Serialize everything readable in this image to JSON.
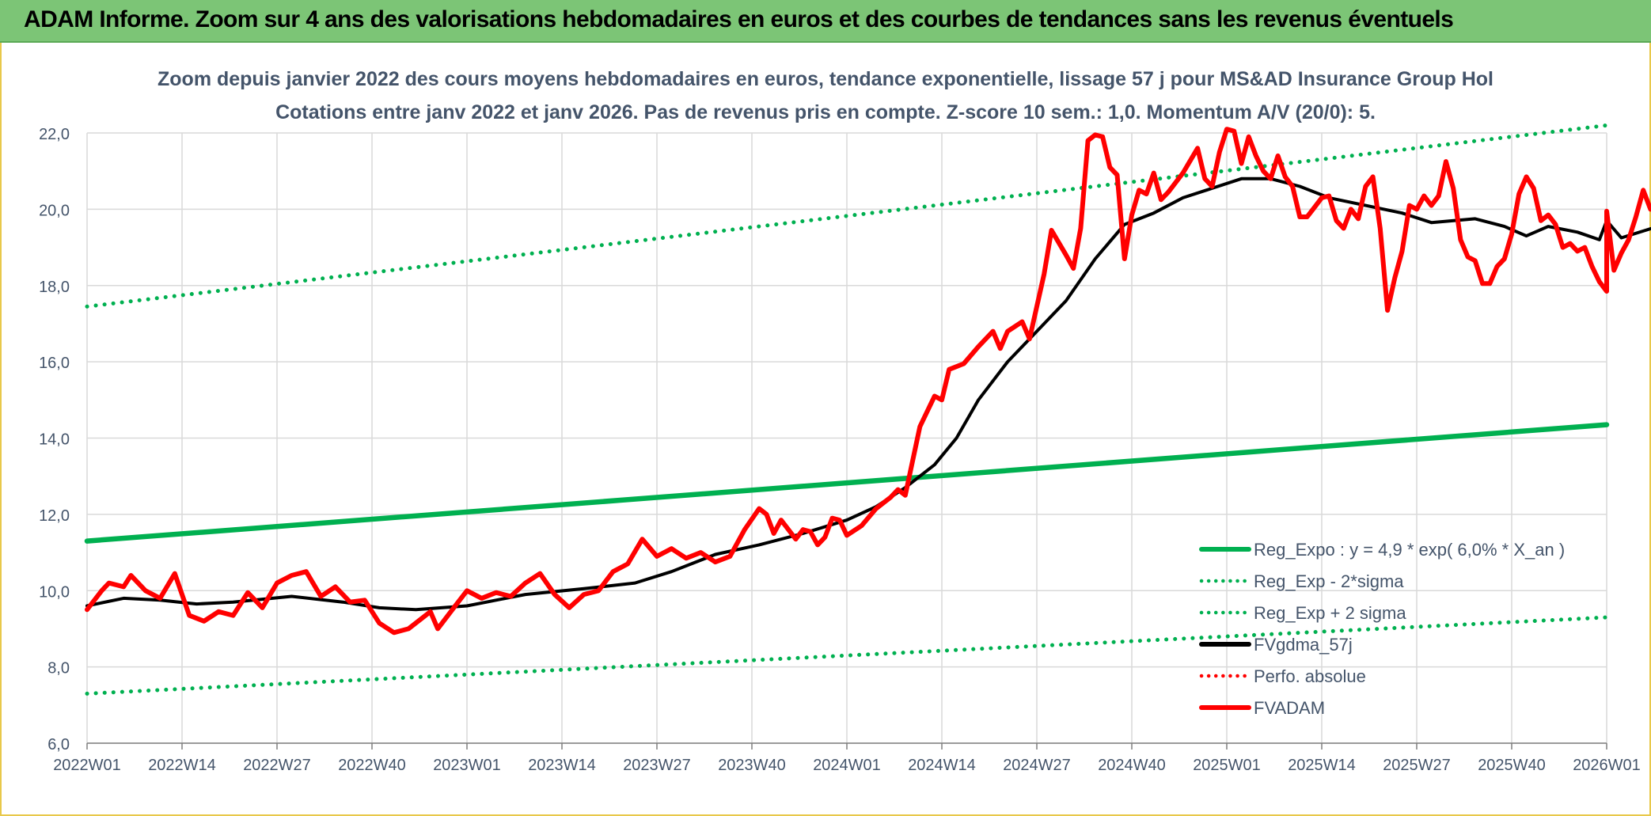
{
  "header": {
    "title": "ADAM Informe. Zoom sur 4 ans des valorisations hebdomadaires en euros et des courbes de tendances sans les revenus éventuels"
  },
  "colors": {
    "header_bg": "#7cc576",
    "green": "#00b050",
    "black": "#000000",
    "red": "#ff0000",
    "grid": "#d9d9d9",
    "title_text": "#44546a"
  },
  "chart_data": {
    "type": "line",
    "title": "Zoom depuis janvier 2022 des cours moyens hebdomadaires en euros, tendance exponentielle, lissage 57 j pour MS&AD Insurance Group Hol",
    "subtitle": "Cotations entre janv 2022 et janv 2026. Pas de revenus pris en compte. Z-score 10 sem.: 1,0. Momentum A/V (20/0): 5.",
    "xlabel": "",
    "ylabel": "",
    "ylim": [
      6,
      22
    ],
    "yticks": [
      "6,0",
      "8,0",
      "10,0",
      "12,0",
      "14,0",
      "16,0",
      "18,0",
      "20,0",
      "22,0"
    ],
    "xticks": [
      "2022W01",
      "2022W14",
      "2022W27",
      "2022W40",
      "2023W01",
      "2023W14",
      "2023W27",
      "2023W40",
      "2024W01",
      "2024W14",
      "2024W27",
      "2024W40",
      "2025W01",
      "2025W14",
      "2025W27",
      "2025W40",
      "2026W01"
    ],
    "grid": true,
    "legend_position": "bottom-right",
    "series": [
      {
        "name": "Reg_Expo : y = 4,9 * exp( 6,0% *  X_an )",
        "color": "#00b050",
        "style": "solid",
        "points": [
          [
            0,
            11.3
          ],
          [
            208,
            14.35
          ]
        ]
      },
      {
        "name": "Reg_Exp - 2*sigma",
        "color": "#00b050",
        "style": "dotted",
        "points": [
          [
            0,
            7.3
          ],
          [
            208,
            9.3
          ]
        ]
      },
      {
        "name": "Reg_Exp + 2 sigma",
        "color": "#00b050",
        "style": "dotted",
        "points": [
          [
            0,
            17.45
          ],
          [
            208,
            22.2
          ]
        ]
      },
      {
        "name": "FVgdma_57j",
        "color": "#000000",
        "style": "solid",
        "points": [
          [
            0,
            9.6
          ],
          [
            5,
            9.8
          ],
          [
            10,
            9.75
          ],
          [
            15,
            9.65
          ],
          [
            20,
            9.7
          ],
          [
            28,
            9.85
          ],
          [
            35,
            9.7
          ],
          [
            40,
            9.55
          ],
          [
            45,
            9.5
          ],
          [
            52,
            9.6
          ],
          [
            60,
            9.9
          ],
          [
            68,
            10.05
          ],
          [
            75,
            10.2
          ],
          [
            80,
            10.5
          ],
          [
            86,
            10.95
          ],
          [
            92,
            11.2
          ],
          [
            98,
            11.5
          ],
          [
            104,
            11.85
          ],
          [
            108,
            12.2
          ],
          [
            112,
            12.7
          ],
          [
            116,
            13.3
          ],
          [
            119,
            14.0
          ],
          [
            122,
            15.0
          ],
          [
            126,
            16.0
          ],
          [
            130,
            16.8
          ],
          [
            134,
            17.6
          ],
          [
            138,
            18.7
          ],
          [
            142,
            19.6
          ],
          [
            146,
            19.9
          ],
          [
            150,
            20.3
          ],
          [
            154,
            20.55
          ],
          [
            158,
            20.8
          ],
          [
            162,
            20.8
          ],
          [
            166,
            20.6
          ],
          [
            170,
            20.3
          ],
          [
            175,
            20.1
          ],
          [
            180,
            19.9
          ],
          [
            184,
            19.65
          ],
          [
            190,
            19.75
          ],
          [
            194,
            19.55
          ],
          [
            197,
            19.3
          ],
          [
            200,
            19.55
          ],
          [
            204,
            19.4
          ],
          [
            207,
            19.2
          ],
          [
            210,
            19.25
          ],
          [
            215,
            19.55
          ],
          [
            208,
            19.7
          ]
        ]
      },
      {
        "name": "Perfo. absolue",
        "color": "#ff0000",
        "style": "dotted",
        "points": []
      },
      {
        "name": "FVADAM",
        "color": "#ff0000",
        "style": "solid",
        "points": [
          [
            0,
            9.5
          ],
          [
            2,
            10.0
          ],
          [
            3,
            10.2
          ],
          [
            5,
            10.1
          ],
          [
            6,
            10.4
          ],
          [
            8,
            10.0
          ],
          [
            10,
            9.8
          ],
          [
            12,
            10.45
          ],
          [
            14,
            9.35
          ],
          [
            16,
            9.2
          ],
          [
            18,
            9.45
          ],
          [
            20,
            9.35
          ],
          [
            22,
            9.95
          ],
          [
            24,
            9.55
          ],
          [
            26,
            10.2
          ],
          [
            28,
            10.4
          ],
          [
            30,
            10.5
          ],
          [
            32,
            9.85
          ],
          [
            34,
            10.1
          ],
          [
            36,
            9.7
          ],
          [
            38,
            9.75
          ],
          [
            40,
            9.15
          ],
          [
            42,
            8.9
          ],
          [
            44,
            9.0
          ],
          [
            46,
            9.3
          ],
          [
            47,
            9.45
          ],
          [
            48,
            9.0
          ],
          [
            50,
            9.5
          ],
          [
            52,
            10.0
          ],
          [
            54,
            9.8
          ],
          [
            56,
            9.95
          ],
          [
            58,
            9.85
          ],
          [
            60,
            10.2
          ],
          [
            62,
            10.45
          ],
          [
            64,
            9.9
          ],
          [
            66,
            9.55
          ],
          [
            68,
            9.9
          ],
          [
            70,
            10.0
          ],
          [
            72,
            10.5
          ],
          [
            74,
            10.7
          ],
          [
            76,
            11.35
          ],
          [
            78,
            10.9
          ],
          [
            80,
            11.1
          ],
          [
            82,
            10.85
          ],
          [
            84,
            11.0
          ],
          [
            86,
            10.75
          ],
          [
            88,
            10.9
          ],
          [
            90,
            11.6
          ],
          [
            92,
            12.15
          ],
          [
            93,
            12.0
          ],
          [
            94,
            11.5
          ],
          [
            95,
            11.85
          ],
          [
            96,
            11.6
          ],
          [
            97,
            11.35
          ],
          [
            98,
            11.6
          ],
          [
            99,
            11.55
          ],
          [
            100,
            11.2
          ],
          [
            101,
            11.4
          ],
          [
            102,
            11.9
          ],
          [
            103,
            11.85
          ],
          [
            104,
            11.45
          ],
          [
            106,
            11.7
          ],
          [
            108,
            12.15
          ],
          [
            110,
            12.45
          ],
          [
            111,
            12.65
          ],
          [
            112,
            12.5
          ],
          [
            114,
            14.3
          ],
          [
            116,
            15.1
          ],
          [
            117,
            15.0
          ],
          [
            118,
            15.8
          ],
          [
            120,
            15.95
          ],
          [
            122,
            16.4
          ],
          [
            124,
            16.8
          ],
          [
            125,
            16.35
          ],
          [
            126,
            16.8
          ],
          [
            128,
            17.05
          ],
          [
            129,
            16.6
          ],
          [
            131,
            18.3
          ],
          [
            132,
            19.45
          ],
          [
            134,
            18.8
          ],
          [
            135,
            18.45
          ],
          [
            136,
            19.5
          ],
          [
            137,
            21.8
          ],
          [
            138,
            21.95
          ],
          [
            139,
            21.9
          ],
          [
            140,
            21.1
          ],
          [
            141,
            20.9
          ],
          [
            142,
            18.7
          ],
          [
            143,
            19.85
          ],
          [
            144,
            20.5
          ],
          [
            145,
            20.4
          ],
          [
            146,
            20.95
          ],
          [
            147,
            20.25
          ],
          [
            148,
            20.45
          ],
          [
            150,
            20.95
          ],
          [
            152,
            21.6
          ],
          [
            153,
            20.8
          ],
          [
            154,
            20.6
          ],
          [
            155,
            21.5
          ],
          [
            156,
            22.1
          ],
          [
            157,
            22.05
          ],
          [
            158,
            21.2
          ],
          [
            159,
            21.9
          ],
          [
            160,
            21.4
          ],
          [
            161,
            21.0
          ],
          [
            162,
            20.8
          ],
          [
            163,
            21.4
          ],
          [
            164,
            20.85
          ],
          [
            165,
            20.6
          ],
          [
            166,
            19.8
          ],
          [
            167,
            19.8
          ],
          [
            168,
            20.05
          ],
          [
            169,
            20.3
          ],
          [
            170,
            20.35
          ],
          [
            171,
            19.7
          ],
          [
            172,
            19.5
          ],
          [
            173,
            20.0
          ],
          [
            174,
            19.75
          ],
          [
            175,
            20.6
          ],
          [
            176,
            20.85
          ],
          [
            177,
            19.5
          ],
          [
            178,
            17.35
          ],
          [
            179,
            18.2
          ],
          [
            180,
            18.9
          ],
          [
            181,
            20.1
          ],
          [
            182,
            20.0
          ],
          [
            183,
            20.35
          ],
          [
            184,
            20.1
          ],
          [
            185,
            20.35
          ],
          [
            186,
            21.25
          ],
          [
            187,
            20.55
          ],
          [
            188,
            19.2
          ],
          [
            189,
            18.75
          ],
          [
            190,
            18.65
          ],
          [
            191,
            18.05
          ],
          [
            192,
            18.05
          ],
          [
            193,
            18.5
          ],
          [
            194,
            18.7
          ],
          [
            195,
            19.35
          ],
          [
            196,
            20.4
          ],
          [
            197,
            20.85
          ],
          [
            198,
            20.55
          ],
          [
            199,
            19.7
          ],
          [
            200,
            19.85
          ],
          [
            201,
            19.6
          ],
          [
            202,
            19.0
          ],
          [
            203,
            19.1
          ],
          [
            204,
            18.9
          ],
          [
            205,
            19.0
          ],
          [
            206,
            18.5
          ],
          [
            207,
            18.1
          ],
          [
            208,
            17.85
          ],
          [
            209,
            18.4
          ],
          [
            210,
            18.85
          ],
          [
            211,
            19.2
          ],
          [
            212,
            19.8
          ],
          [
            213,
            20.5
          ],
          [
            214,
            20.0
          ],
          [
            208,
            19.95
          ]
        ]
      }
    ]
  }
}
